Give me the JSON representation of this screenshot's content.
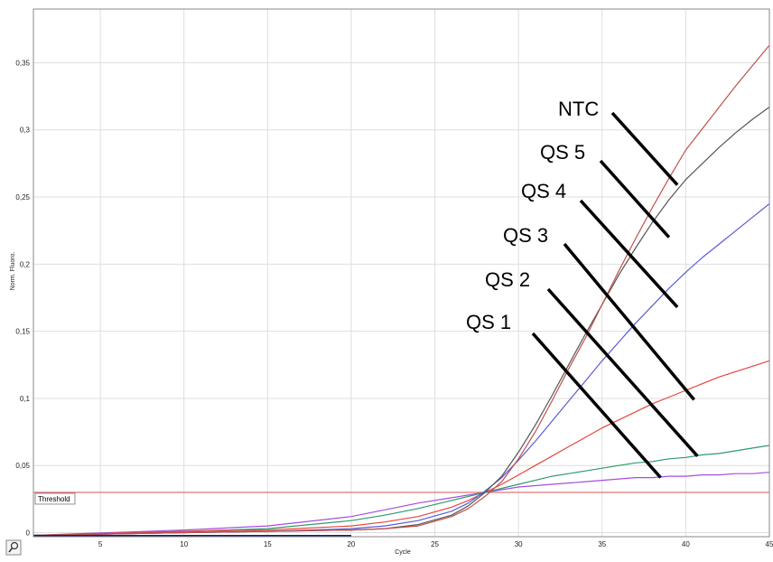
{
  "chart_data": {
    "type": "line",
    "xlabel": "Cycle",
    "ylabel": "Norm. Fluoro.",
    "xlim": [
      1,
      45
    ],
    "ylim": [
      -0.003,
      0.39
    ],
    "x_ticks": [
      5,
      10,
      15,
      20,
      25,
      30,
      35,
      40,
      45
    ],
    "y_ticks": [
      0,
      0.05,
      0.1,
      0.15,
      0.2,
      0.25,
      0.3,
      0.35
    ],
    "y_tick_labels": [
      "0",
      "0,05",
      "0,1",
      "0,15",
      "0,2",
      "0,25",
      "0,3",
      "0,35"
    ],
    "grid": true,
    "threshold": {
      "label": "Threshold",
      "value": 0.03,
      "color": "#e06666"
    },
    "series": [
      {
        "name": "NTC",
        "color": "#c0504d",
        "x": [
          1,
          10,
          15,
          20,
          22,
          24,
          26,
          27,
          28,
          29,
          30,
          31,
          32,
          33,
          34,
          35,
          36,
          37,
          38,
          39,
          40,
          41,
          42,
          43,
          44,
          45
        ],
        "values": [
          -0.002,
          0.0,
          0.001,
          0.002,
          0.003,
          0.005,
          0.012,
          0.018,
          0.027,
          0.038,
          0.055,
          0.075,
          0.098,
          0.122,
          0.145,
          0.17,
          0.195,
          0.219,
          0.242,
          0.264,
          0.285,
          0.301,
          0.317,
          0.333,
          0.348,
          0.363
        ]
      },
      {
        "name": "QS 5",
        "color": "#555555",
        "x": [
          1,
          10,
          15,
          20,
          22,
          24,
          26,
          27,
          28,
          29,
          30,
          31,
          32,
          33,
          34,
          35,
          36,
          37,
          38,
          39,
          40,
          41,
          42,
          43,
          44,
          45
        ],
        "values": [
          -0.002,
          0.0,
          0.001,
          0.002,
          0.003,
          0.006,
          0.013,
          0.02,
          0.03,
          0.042,
          0.06,
          0.08,
          0.102,
          0.125,
          0.148,
          0.17,
          0.192,
          0.212,
          0.231,
          0.248,
          0.263,
          0.275,
          0.287,
          0.298,
          0.308,
          0.317
        ]
      },
      {
        "name": "QS 4",
        "color": "#5b5bd6",
        "x": [
          1,
          10,
          15,
          20,
          22,
          24,
          26,
          27,
          28,
          29,
          30,
          31,
          32,
          33,
          34,
          35,
          36,
          37,
          38,
          39,
          40,
          41,
          42,
          43,
          44,
          45
        ],
        "values": [
          -0.002,
          0.0,
          0.001,
          0.003,
          0.005,
          0.009,
          0.016,
          0.022,
          0.031,
          0.041,
          0.054,
          0.068,
          0.083,
          0.098,
          0.113,
          0.128,
          0.142,
          0.156,
          0.169,
          0.182,
          0.194,
          0.205,
          0.215,
          0.225,
          0.235,
          0.245
        ]
      },
      {
        "name": "QS 3",
        "color": "#e8453c",
        "x": [
          1,
          10,
          15,
          20,
          22,
          24,
          26,
          27,
          28,
          29,
          30,
          31,
          32,
          33,
          34,
          35,
          36,
          37,
          38,
          39,
          40,
          41,
          42,
          43,
          44,
          45
        ],
        "values": [
          -0.002,
          0.001,
          0.002,
          0.005,
          0.008,
          0.012,
          0.019,
          0.024,
          0.03,
          0.036,
          0.043,
          0.05,
          0.057,
          0.064,
          0.071,
          0.078,
          0.084,
          0.09,
          0.096,
          0.101,
          0.106,
          0.111,
          0.116,
          0.12,
          0.124,
          0.128
        ]
      },
      {
        "name": "QS 2",
        "color": "#2e9a6e",
        "x": [
          1,
          10,
          15,
          20,
          22,
          24,
          26,
          27,
          28,
          29,
          30,
          31,
          32,
          33,
          34,
          35,
          36,
          37,
          38,
          39,
          40,
          41,
          42,
          43,
          44,
          45
        ],
        "values": [
          -0.002,
          0.001,
          0.003,
          0.009,
          0.013,
          0.018,
          0.024,
          0.027,
          0.03,
          0.033,
          0.036,
          0.039,
          0.042,
          0.044,
          0.046,
          0.048,
          0.05,
          0.052,
          0.053,
          0.055,
          0.056,
          0.058,
          0.059,
          0.061,
          0.063,
          0.065
        ]
      },
      {
        "name": "QS 1",
        "color": "#a64de0",
        "x": [
          1,
          10,
          15,
          20,
          22,
          24,
          26,
          27,
          28,
          29,
          30,
          31,
          32,
          33,
          34,
          35,
          36,
          37,
          38,
          39,
          40,
          41,
          42,
          43,
          44,
          45
        ],
        "values": [
          -0.002,
          0.002,
          0.005,
          0.012,
          0.017,
          0.022,
          0.026,
          0.028,
          0.03,
          0.032,
          0.034,
          0.035,
          0.036,
          0.037,
          0.038,
          0.039,
          0.04,
          0.041,
          0.041,
          0.042,
          0.042,
          0.043,
          0.043,
          0.044,
          0.044,
          0.045
        ]
      }
    ],
    "callouts": [
      {
        "label": "NTC",
        "target": [
          39.5,
          0.259
        ]
      },
      {
        "label": "QS 5",
        "target": [
          39.0,
          0.22
        ]
      },
      {
        "label": "QS 4",
        "target": [
          39.5,
          0.168
        ]
      },
      {
        "label": "QS 3",
        "target": [
          40.5,
          0.099
        ]
      },
      {
        "label": "QS 2",
        "target": [
          40.7,
          0.057
        ]
      },
      {
        "label": "QS 1",
        "target": [
          38.5,
          0.041
        ]
      }
    ]
  }
}
